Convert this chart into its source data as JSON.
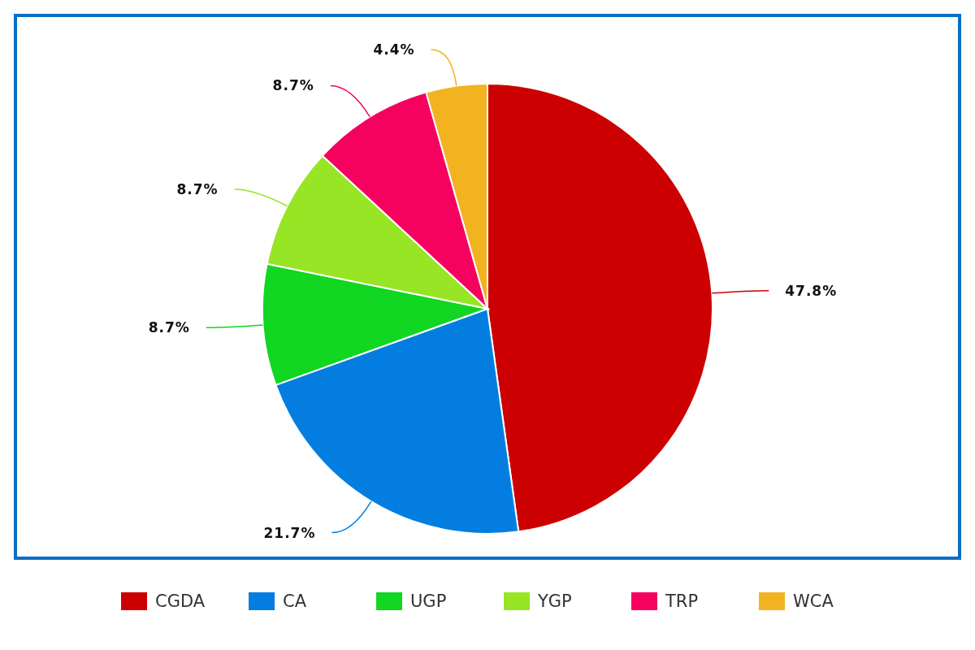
{
  "chart_data": {
    "type": "pie",
    "categories": [
      "CGDA",
      "CA",
      "UGP",
      "YGP",
      "TRP",
      "WCA"
    ],
    "values": [
      47.8,
      21.7,
      8.7,
      8.7,
      8.7,
      4.4
    ],
    "colors": [
      "#cc0000",
      "#037ee0",
      "#11d622",
      "#97e524",
      "#f50160",
      "#f2b320"
    ],
    "value_labels": [
      "47.8%",
      "21.7%",
      "8.7%",
      "8.7%",
      "8.7%",
      "4.4%"
    ],
    "legend": "bottom"
  }
}
